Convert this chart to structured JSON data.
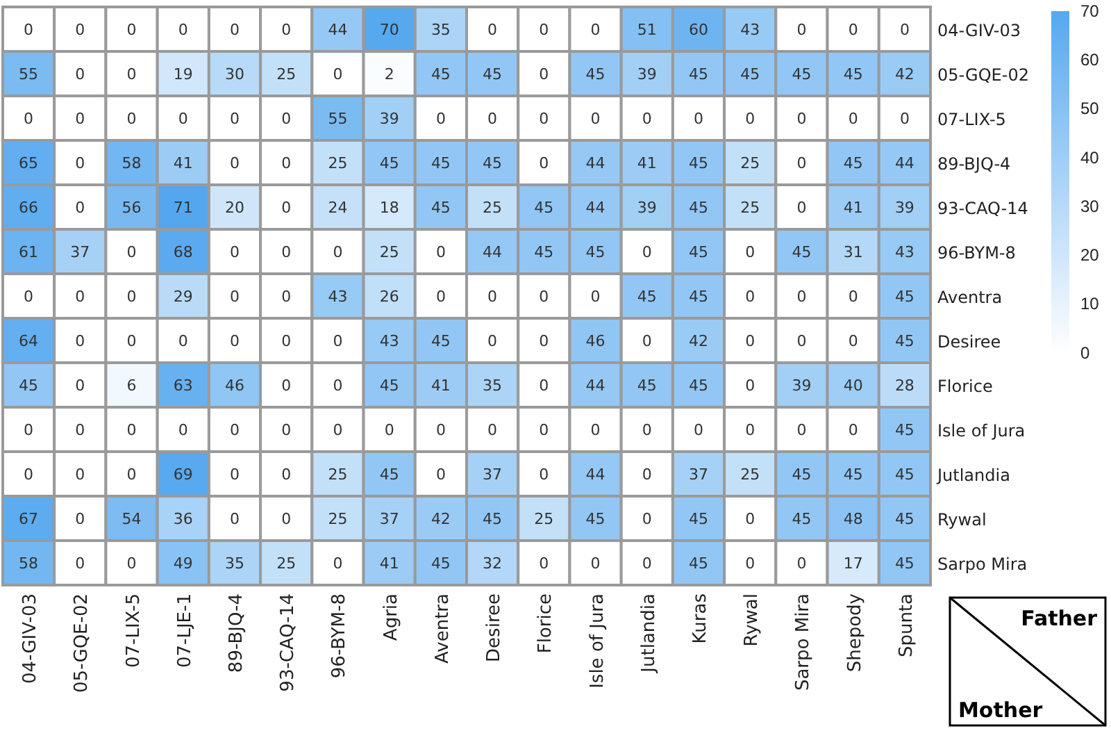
{
  "chart_data": {
    "type": "heatmap",
    "xlabel": "Mother",
    "ylabel": "Father",
    "categories": [
      "04-GIV-03",
      "05-GQE-02",
      "07-LIX-5",
      "07-LJE-1",
      "89-BJQ-4",
      "93-CAQ-14",
      "96-BYM-8",
      "Agria",
      "Aventra",
      "Desiree",
      "Florice",
      "Isle of Jura",
      "Jutlandia",
      "Kuras",
      "Rywal",
      "Sarpo Mira",
      "Shepody",
      "Spunta"
    ],
    "y_categories": [
      "04-GIV-03",
      "05-GQE-02",
      "07-LIX-5",
      "89-BJQ-4",
      "93-CAQ-14",
      "96-BYM-8",
      "Aventra",
      "Desiree",
      "Florice",
      "Isle of Jura",
      "Jutlandia",
      "Rywal",
      "Sarpo Mira"
    ],
    "cells": [
      [
        0,
        0,
        0,
        0,
        0,
        0,
        44,
        70,
        35,
        0,
        0,
        0,
        51,
        60,
        43,
        0,
        0,
        0
      ],
      [
        55,
        0,
        0,
        19,
        30,
        25,
        0,
        2,
        45,
        45,
        0,
        45,
        39,
        45,
        45,
        45,
        45,
        42
      ],
      [
        0,
        0,
        0,
        0,
        0,
        0,
        55,
        39,
        0,
        0,
        0,
        0,
        0,
        0,
        0,
        0,
        0,
        0
      ],
      [
        65,
        0,
        58,
        41,
        0,
        0,
        25,
        45,
        45,
        45,
        0,
        44,
        41,
        45,
        25,
        0,
        45,
        44
      ],
      [
        66,
        0,
        56,
        71,
        20,
        0,
        24,
        18,
        45,
        25,
        45,
        44,
        39,
        45,
        25,
        0,
        41,
        39
      ],
      [
        61,
        37,
        0,
        68,
        0,
        0,
        0,
        25,
        0,
        44,
        45,
        45,
        0,
        45,
        0,
        45,
        31,
        43
      ],
      [
        0,
        0,
        0,
        29,
        0,
        0,
        43,
        26,
        0,
        0,
        0,
        0,
        45,
        45,
        0,
        0,
        0,
        45
      ],
      [
        64,
        0,
        0,
        0,
        0,
        0,
        0,
        43,
        45,
        0,
        0,
        46,
        0,
        42,
        0,
        0,
        0,
        45
      ],
      [
        45,
        0,
        6,
        63,
        46,
        0,
        0,
        45,
        41,
        35,
        0,
        44,
        45,
        45,
        0,
        39,
        40,
        28
      ],
      [
        0,
        0,
        0,
        0,
        0,
        0,
        0,
        0,
        0,
        0,
        0,
        0,
        0,
        0,
        0,
        0,
        0,
        45
      ],
      [
        0,
        0,
        0,
        69,
        0,
        0,
        25,
        45,
        0,
        37,
        0,
        44,
        0,
        37,
        25,
        45,
        45,
        45
      ],
      [
        67,
        0,
        54,
        36,
        0,
        0,
        25,
        37,
        42,
        45,
        25,
        45,
        0,
        45,
        0,
        45,
        48,
        45
      ],
      [
        58,
        0,
        0,
        49,
        35,
        25,
        0,
        41,
        45,
        32,
        0,
        0,
        0,
        45,
        0,
        0,
        17,
        45
      ]
    ],
    "data_labels": true,
    "clim": [
      0,
      70
    ],
    "cticks": [
      0,
      10,
      20,
      30,
      40,
      50,
      60,
      70
    ]
  }
}
